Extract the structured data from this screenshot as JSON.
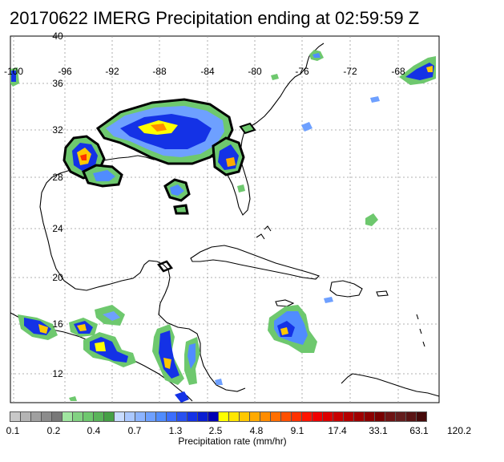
{
  "title": "20170622 IMERG Precipitation ending at 02:59:59 Z",
  "lat_labels": [
    "40",
    "36",
    "32",
    "28",
    "24",
    "20",
    "16",
    "12"
  ],
  "lon_labels": [
    "-100",
    "-96",
    "-92",
    "-88",
    "-84",
    "-80",
    "-76",
    "-72",
    "-68"
  ],
  "colorbar": {
    "title": "Precipitation rate (mm/hr)",
    "tick_labels": [
      "0.1",
      "0.2",
      "0.4",
      "0.7",
      "1.3",
      "2.5",
      "4.8",
      "9.1",
      "17.4",
      "33.1",
      "63.1",
      "120.2"
    ],
    "colors": [
      "#c8c8c8",
      "#b4b4b4",
      "#a0a0a0",
      "#8c8c8c",
      "#787878",
      "#a0e6a0",
      "#82d282",
      "#6ec86e",
      "#5ab45a",
      "#46a046",
      "#c8dcff",
      "#aac8ff",
      "#8cb4ff",
      "#6ea0ff",
      "#508cff",
      "#3c6eff",
      "#2850f0",
      "#1432e6",
      "#0a1ed2",
      "#0000b4",
      "#ffff00",
      "#ffe600",
      "#ffc800",
      "#ffaa00",
      "#ff8c00",
      "#ff6e00",
      "#ff5000",
      "#ff3200",
      "#ff1400",
      "#f00000",
      "#dc0000",
      "#c80000",
      "#b40000",
      "#a00000",
      "#8c0000",
      "#780000",
      "#6e1414",
      "#641e1e",
      "#5a1414",
      "#460a0a"
    ]
  }
}
